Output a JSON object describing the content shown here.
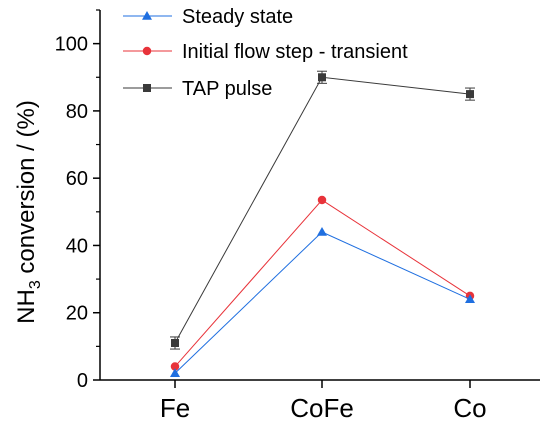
{
  "chart_data": {
    "type": "line",
    "title": "",
    "xlabel": "",
    "ylabel": "NH",
    "ylabel_sub": "3",
    "ylabel_rest": " conversion / (%)",
    "categories": [
      "Fe",
      "CoFe",
      "Co"
    ],
    "ylim": [
      0,
      110
    ],
    "yticks": [
      0,
      20,
      40,
      60,
      80,
      100
    ],
    "yticks_labels": [
      "0",
      "20",
      "40",
      "60",
      "80",
      "100"
    ],
    "grid": false,
    "legend_position": "top-left",
    "series": [
      {
        "name": "Steady state",
        "values": [
          2,
          44,
          24
        ],
        "color": "#1f6fe0",
        "marker": "triangle",
        "errors": [
          0,
          0,
          0
        ]
      },
      {
        "name": "Initial flow step - transient",
        "values": [
          4,
          53.5,
          25
        ],
        "color": "#e8333a",
        "marker": "circle",
        "errors": [
          0,
          0,
          0
        ]
      },
      {
        "name": "TAP pulse",
        "values": [
          11,
          90,
          85
        ],
        "color": "#3a3a3a",
        "marker": "square",
        "errors": [
          1.8,
          1.8,
          1.8
        ]
      }
    ]
  }
}
